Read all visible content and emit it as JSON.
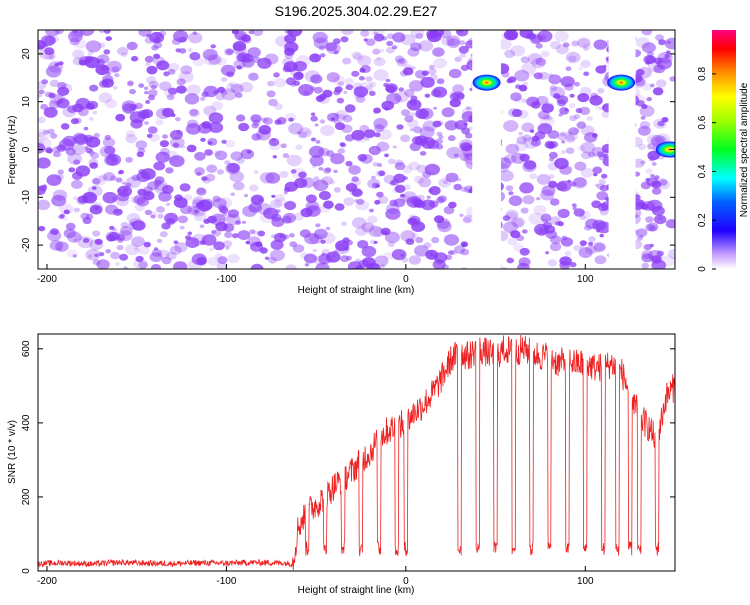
{
  "figure_title": "S196.2025.304.02.29.E27",
  "chart_data": [
    {
      "type": "heatmap",
      "title": "S196.2025.304.02.29.E27",
      "xlabel": "Height of straight line (km)",
      "ylabel": "Frequency (Hz)",
      "xlim": [
        -205,
        150
      ],
      "ylim": [
        -25,
        25
      ],
      "x_ticks": [
        -200,
        -100,
        0,
        100
      ],
      "y_ticks": [
        -20,
        -10,
        0,
        10,
        20
      ],
      "colorbar": {
        "label": "Normalized spectral amplitude",
        "range": [
          0,
          0.98
        ],
        "ticks": [
          0,
          0.2,
          0.4,
          0.6,
          0.8
        ],
        "colormap": [
          "#ffffff",
          "#e0c8ff",
          "#8040ff",
          "#2000ff",
          "#0000ff",
          "#00ffff",
          "#00ff00",
          "#ffff00",
          "#ff8000",
          "#ff0000",
          "#ff00ff"
        ]
      },
      "background_speckle_color": "#8a3cf5",
      "blank_bands_km": [
        [
          37,
          53
        ],
        [
          113,
          128
        ]
      ],
      "hotspots": [
        {
          "x": 45,
          "y": 14,
          "peak": 0.8
        },
        {
          "x": 120,
          "y": 14,
          "peak": 0.85
        },
        {
          "x": 147,
          "y": 0,
          "peak": 0.9
        }
      ]
    },
    {
      "type": "line",
      "xlabel": "Height of straight line (km)",
      "ylabel": "SNR (10 * v/v)",
      "xlim": [
        -205,
        150
      ],
      "ylim": [
        0,
        640
      ],
      "x_ticks": [
        -200,
        -100,
        0,
        100
      ],
      "y_ticks": [
        0,
        200,
        400,
        600
      ],
      "line_color": "#ee2020",
      "series": [
        {
          "x": [
            -205,
            -190,
            -175,
            -160,
            -145,
            -130,
            -115,
            -100,
            -85,
            -70,
            -63,
            -60,
            -55,
            -50,
            -45,
            -40,
            -35,
            -30,
            -25,
            -20,
            -15,
            -10,
            -5,
            0,
            5,
            10,
            15,
            20,
            25,
            30,
            35,
            40,
            45,
            50,
            55,
            60,
            65,
            70,
            75,
            80,
            85,
            90,
            95,
            100,
            105,
            110,
            115,
            120,
            125,
            130,
            135,
            140,
            145,
            150
          ],
          "values": [
            20,
            22,
            19,
            23,
            21,
            20,
            22,
            21,
            23,
            22,
            20,
            120,
            160,
            180,
            200,
            230,
            250,
            270,
            300,
            320,
            360,
            380,
            390,
            400,
            430,
            450,
            480,
            520,
            570,
            590,
            580,
            600,
            590,
            580,
            600,
            590,
            600,
            590,
            580,
            580,
            560,
            570,
            560,
            560,
            550,
            550,
            560,
            540,
            480,
            420,
            390,
            350,
            470,
            500
          ]
        }
      ],
      "dropouts_km": [
        -55,
        -45,
        -35,
        -25,
        -15,
        -5,
        0,
        30,
        40,
        50,
        60,
        70,
        80,
        90,
        100,
        110,
        118,
        125,
        130,
        140
      ]
    }
  ]
}
